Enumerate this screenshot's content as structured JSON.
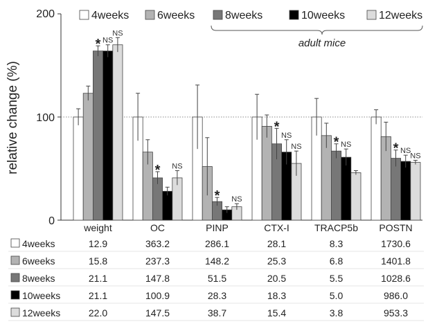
{
  "chart_data": {
    "type": "bar",
    "ylabel": "relative change (%)",
    "ylim": [
      0,
      200
    ],
    "yticks": [
      "0",
      "100",
      "200"
    ],
    "reference_line": 100,
    "grid": false,
    "legend_position": "top",
    "legend_note": "adult mice",
    "categories": [
      "weight",
      "OC",
      "PINP",
      "CTX-I",
      "TRACP5b",
      "POSTN"
    ],
    "series": [
      {
        "name": "4weeks",
        "color": "#ffffff",
        "values": [
          100,
          100,
          100,
          100,
          100,
          100
        ],
        "errors": [
          8,
          23,
          31,
          22,
          18,
          7
        ],
        "table": [
          "12.9",
          "363.2",
          "286.1",
          "28.1",
          "8.3",
          "1730.6"
        ]
      },
      {
        "name": "6weeks",
        "color": "#b3b3b3",
        "values": [
          123,
          66,
          52,
          91,
          82,
          81
        ],
        "errors": [
          7,
          12,
          28,
          11,
          12,
          14
        ],
        "table": [
          "15.8",
          "237.3",
          "148.2",
          "25.3",
          "6.8",
          "1401.8"
        ]
      },
      {
        "name": "8weeks",
        "color": "#777777",
        "values": [
          164,
          41,
          18,
          74,
          67,
          60
        ],
        "errors": [
          5,
          6,
          4,
          15,
          7,
          8
        ],
        "table": [
          "21.1",
          "147.8",
          "51.5",
          "20.5",
          "5.5",
          "1028.6"
        ]
      },
      {
        "name": "10weeks",
        "color": "#000000",
        "values": [
          164,
          28,
          10,
          66,
          61,
          57
        ],
        "errors": [
          6,
          4,
          3,
          12,
          8,
          6
        ],
        "table": [
          "21.1",
          "100.9",
          "28.3",
          "18.3",
          "5.0",
          "986.0"
        ]
      },
      {
        "name": "12weeks",
        "color": "#dcdcdc",
        "values": [
          170,
          41,
          13,
          55,
          46,
          56
        ],
        "errors": [
          7,
          7,
          3,
          12,
          2,
          2
        ],
        "table": [
          "22.0",
          "147.5",
          "38.7",
          "15.4",
          "3.8",
          "953.3"
        ]
      }
    ],
    "annotations": [
      {
        "category": 0,
        "series": 2,
        "text": "*"
      },
      {
        "category": 0,
        "series": 3,
        "text": "NS"
      },
      {
        "category": 0,
        "series": 4,
        "text": "NS"
      },
      {
        "category": 1,
        "series": 2,
        "text": "*"
      },
      {
        "category": 1,
        "series": 4,
        "text": "NS"
      },
      {
        "category": 2,
        "series": 2,
        "text": "*"
      },
      {
        "category": 2,
        "series": 4,
        "text": "NS"
      },
      {
        "category": 3,
        "series": 2,
        "text": "*"
      },
      {
        "category": 3,
        "series": 3,
        "text": "NS"
      },
      {
        "category": 3,
        "series": 4,
        "text": "NS"
      },
      {
        "category": 4,
        "series": 2,
        "text": "*"
      },
      {
        "category": 4,
        "series": 3,
        "text": "NS"
      },
      {
        "category": 5,
        "series": 2,
        "text": "*"
      },
      {
        "category": 5,
        "series": 3,
        "text": "NS"
      },
      {
        "category": 5,
        "series": 4,
        "text": "NS"
      }
    ]
  }
}
